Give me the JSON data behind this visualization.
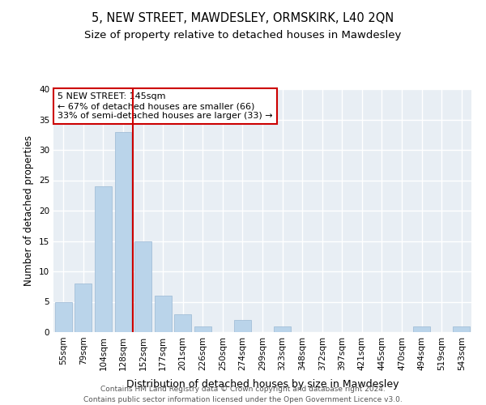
{
  "title": "5, NEW STREET, MAWDESLEY, ORMSKIRK, L40 2QN",
  "subtitle": "Size of property relative to detached houses in Mawdesley",
  "xlabel": "Distribution of detached houses by size in Mawdesley",
  "ylabel": "Number of detached properties",
  "categories": [
    "55sqm",
    "79sqm",
    "104sqm",
    "128sqm",
    "152sqm",
    "177sqm",
    "201sqm",
    "226sqm",
    "250sqm",
    "274sqm",
    "299sqm",
    "323sqm",
    "348sqm",
    "372sqm",
    "397sqm",
    "421sqm",
    "445sqm",
    "470sqm",
    "494sqm",
    "519sqm",
    "543sqm"
  ],
  "values": [
    5,
    8,
    24,
    33,
    15,
    6,
    3,
    1,
    0,
    2,
    0,
    1,
    0,
    0,
    0,
    0,
    0,
    0,
    1,
    0,
    1
  ],
  "bar_color": "#bad4ea",
  "bar_edgecolor": "#9ab8d4",
  "ref_line_x": 3.5,
  "ref_line_color": "#cc0000",
  "annotation_text": "5 NEW STREET: 145sqm\n← 67% of detached houses are smaller (66)\n33% of semi-detached houses are larger (33) →",
  "annotation_box_edgecolor": "#cc0000",
  "ylim": [
    0,
    40
  ],
  "yticks": [
    0,
    5,
    10,
    15,
    20,
    25,
    30,
    35,
    40
  ],
  "background_color": "#e8eef4",
  "footer_text": "Contains HM Land Registry data © Crown copyright and database right 2024.\nContains public sector information licensed under the Open Government Licence v3.0.",
  "title_fontsize": 10.5,
  "subtitle_fontsize": 9.5,
  "xlabel_fontsize": 9,
  "ylabel_fontsize": 8.5,
  "tick_fontsize": 7.5,
  "annotation_fontsize": 8,
  "footer_fontsize": 6.5
}
